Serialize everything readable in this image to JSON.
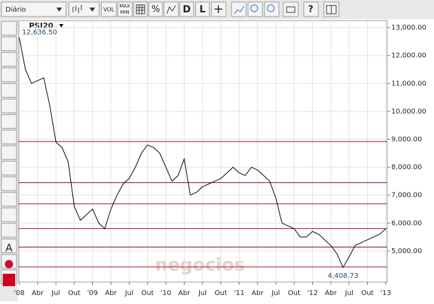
{
  "toolbar": {
    "period": "Diário",
    "buttons": [
      "VOL",
      "MAX",
      "MIN",
      "%",
      "D",
      "L",
      "+",
      "?"
    ]
  },
  "left_tool": "A",
  "watermark": "negocios",
  "chart_data": {
    "type": "line",
    "x": [
      "2008-01",
      "2008-02",
      "2008-03",
      "2008-04",
      "2008-05",
      "2008-06",
      "2008-07",
      "2008-08",
      "2008-09",
      "2008-10",
      "2008-11",
      "2008-12",
      "2009-01",
      "2009-02",
      "2009-03",
      "2009-04",
      "2009-05",
      "2009-06",
      "2009-07",
      "2009-08",
      "2009-09",
      "2009-10",
      "2009-11",
      "2009-12",
      "2010-01",
      "2010-02",
      "2010-03",
      "2010-04",
      "2010-05",
      "2010-06",
      "2010-07",
      "2010-08",
      "2010-09",
      "2010-10",
      "2010-11",
      "2010-12",
      "2011-01",
      "2011-02",
      "2011-03",
      "2011-04",
      "2011-05",
      "2011-06",
      "2011-07",
      "2011-08",
      "2011-09",
      "2011-10",
      "2011-11",
      "2011-12",
      "2012-01",
      "2012-02",
      "2012-03",
      "2012-04",
      "2012-05",
      "2012-06",
      "2012-07",
      "2012-08",
      "2012-09",
      "2012-10",
      "2012-11",
      "2012-12",
      "2013-01"
    ],
    "series": [
      {
        "name": "PSI20",
        "color": "#000000",
        "values": [
          12636.5,
          11500,
          11000,
          11100,
          11200,
          10200,
          8900,
          8700,
          8200,
          6600,
          6100,
          6300,
          6500,
          6000,
          5800,
          6500,
          7000,
          7400,
          7600,
          8000,
          8500,
          8800,
          8700,
          8500,
          8000,
          7500,
          7700,
          8300,
          7000,
          7100,
          7300,
          7400,
          7500,
          7600,
          7800,
          8000,
          7800,
          7700,
          8000,
          7900,
          7700,
          7500,
          6900,
          6000,
          5900,
          5800,
          5500,
          5500,
          5700,
          5600,
          5400,
          5200,
          4900,
          4408.73,
          4800,
          5200,
          5300,
          5400,
          5500,
          5600,
          5800
        ],
        "value_labels": [
          "12,636.50",
          null,
          null,
          null,
          null,
          null,
          null,
          null,
          null,
          null,
          null,
          null,
          null,
          null,
          null,
          null,
          null,
          null,
          null,
          null,
          null,
          null,
          null,
          null,
          null,
          null,
          null,
          null,
          null,
          null,
          null,
          null,
          null,
          null,
          null,
          null,
          null,
          null,
          null,
          null,
          null,
          null,
          null,
          null,
          null,
          null,
          null,
          null,
          null,
          null,
          null,
          null,
          null,
          "4,408.73",
          null,
          null,
          null,
          null,
          null,
          null,
          null
        ]
      }
    ],
    "xlim": [
      "2008-01",
      "2013-01"
    ],
    "xticks": [
      {
        "value": "2008-01",
        "label": "'08"
      },
      {
        "value": "2008-04",
        "label": "Abr"
      },
      {
        "value": "2008-07",
        "label": "Jul"
      },
      {
        "value": "2008-10",
        "label": "Out"
      },
      {
        "value": "2009-01",
        "label": "'09"
      },
      {
        "value": "2009-04",
        "label": "Abr"
      },
      {
        "value": "2009-07",
        "label": "Jul"
      },
      {
        "value": "2009-10",
        "label": "Out"
      },
      {
        "value": "2010-01",
        "label": "'10"
      },
      {
        "value": "2010-04",
        "label": "Abr"
      },
      {
        "value": "2010-07",
        "label": "Jul"
      },
      {
        "value": "2010-10",
        "label": "Out"
      },
      {
        "value": "2011-01",
        "label": "'11"
      },
      {
        "value": "2011-04",
        "label": "Abr"
      },
      {
        "value": "2011-07",
        "label": "Jul"
      },
      {
        "value": "2011-10",
        "label": "Out"
      },
      {
        "value": "2012-01",
        "label": "'12"
      },
      {
        "value": "2012-04",
        "label": "Abr"
      },
      {
        "value": "2012-07",
        "label": "Jul"
      },
      {
        "value": "2012-10",
        "label": "Out"
      },
      {
        "value": "2013-01",
        "label": "'13"
      }
    ],
    "ylim": [
      3890,
      13250
    ],
    "yticks": [
      {
        "value": 5000,
        "label": "5,000.00"
      },
      {
        "value": 6000,
        "label": "6,000.00"
      },
      {
        "value": 7000,
        "label": "7,000.00"
      },
      {
        "value": 8000,
        "label": "8,000.00"
      },
      {
        "value": 9000,
        "label": "9,000.00"
      },
      {
        "value": 10000,
        "label": "10,000.00"
      },
      {
        "value": 11000,
        "label": "11,000.00"
      },
      {
        "value": 12000,
        "label": "12,000.00"
      },
      {
        "value": 13000,
        "label": "13,000.00"
      }
    ],
    "grid": true,
    "hlines": {
      "color": "#a52a2a",
      "values": [
        8920,
        7450,
        6690,
        5800,
        5140,
        4430
      ]
    }
  }
}
